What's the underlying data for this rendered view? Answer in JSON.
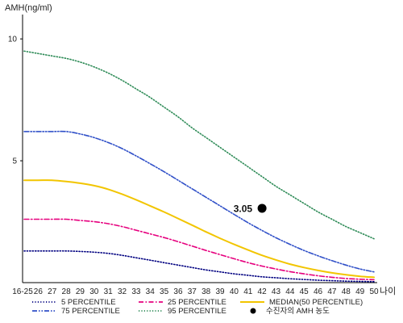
{
  "chart_data": {
    "type": "line",
    "ylabel": "AMH(ng/ml)",
    "xlabel": "나이",
    "ylim": [
      0,
      11
    ],
    "yticks": [
      5,
      10
    ],
    "grid": false,
    "legend_position": "bottom",
    "x": [
      "16-25",
      "26",
      "27",
      "28",
      "29",
      "30",
      "31",
      "32",
      "33",
      "34",
      "35",
      "36",
      "37",
      "38",
      "39",
      "40",
      "41",
      "42",
      "43",
      "44",
      "45",
      "46",
      "47",
      "48",
      "49",
      "50"
    ],
    "series": [
      {
        "name": "5 PERCENTILE",
        "color": "#000080",
        "dash": "dotted",
        "values": [
          1.3,
          1.3,
          1.3,
          1.3,
          1.28,
          1.25,
          1.2,
          1.12,
          1.02,
          0.92,
          0.82,
          0.72,
          0.62,
          0.52,
          0.44,
          0.36,
          0.3,
          0.24,
          0.2,
          0.16,
          0.13,
          0.1,
          0.08,
          0.06,
          0.05,
          0.04
        ]
      },
      {
        "name": "25 PERCENTILE",
        "color": "#e6007e",
        "dash": "dashdot",
        "values": [
          2.6,
          2.6,
          2.6,
          2.6,
          2.55,
          2.5,
          2.42,
          2.3,
          2.15,
          2.0,
          1.85,
          1.68,
          1.5,
          1.32,
          1.15,
          0.98,
          0.82,
          0.68,
          0.56,
          0.45,
          0.36,
          0.28,
          0.22,
          0.17,
          0.14,
          0.12
        ]
      },
      {
        "name": "MEDIAN(50 PERCENTILE)",
        "color": "#f2c500",
        "dash": "solid",
        "values": [
          4.2,
          4.2,
          4.2,
          4.15,
          4.08,
          3.98,
          3.83,
          3.63,
          3.4,
          3.15,
          2.9,
          2.63,
          2.36,
          2.08,
          1.82,
          1.57,
          1.34,
          1.12,
          0.93,
          0.76,
          0.62,
          0.5,
          0.4,
          0.32,
          0.26,
          0.22
        ]
      },
      {
        "name": "75 PERCENTILE",
        "color": "#3050c8",
        "dash": "dashdotdot",
        "values": [
          6.2,
          6.2,
          6.2,
          6.2,
          6.1,
          5.95,
          5.75,
          5.5,
          5.2,
          4.88,
          4.55,
          4.2,
          3.85,
          3.5,
          3.15,
          2.8,
          2.46,
          2.14,
          1.84,
          1.57,
          1.32,
          1.1,
          0.9,
          0.72,
          0.56,
          0.44
        ]
      },
      {
        "name": "95 PERCENTILE",
        "color": "#2e8b57",
        "dash": "dotted",
        "values": [
          9.5,
          9.4,
          9.3,
          9.2,
          9.05,
          8.85,
          8.6,
          8.3,
          7.95,
          7.6,
          7.2,
          6.8,
          6.35,
          5.95,
          5.55,
          5.15,
          4.75,
          4.35,
          3.95,
          3.6,
          3.25,
          2.9,
          2.6,
          2.3,
          2.05,
          1.8
        ]
      }
    ],
    "marker": {
      "name": "수진자의 AMH 농도",
      "x": "42",
      "y": 3.05,
      "label": "3.05",
      "color": "#000000"
    },
    "legend": [
      {
        "series": 0,
        "label": "5 PERCENTILE"
      },
      {
        "series": 1,
        "label": "25 PERCENTILE"
      },
      {
        "series": 2,
        "label": "MEDIAN(50 PERCENTILE)"
      },
      {
        "series": 3,
        "label": "75 PERCENTILE"
      },
      {
        "series": 4,
        "label": "95 PERCENTILE"
      },
      {
        "marker": true,
        "label": "수진자의 AMH 농도"
      }
    ]
  }
}
